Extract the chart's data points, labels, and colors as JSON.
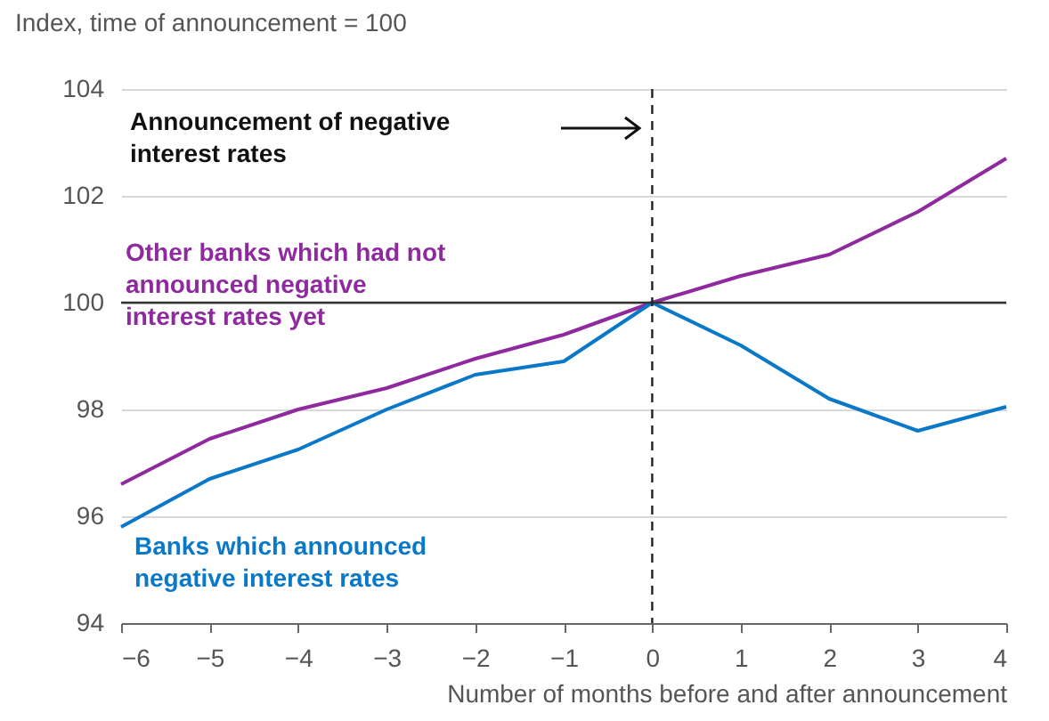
{
  "chart_data": {
    "type": "line",
    "ylabel": "Index, time of announcement = 100",
    "xlabel": "Number of months before and after announcement",
    "x": [
      -6,
      -5,
      -4,
      -3,
      -2,
      -1,
      0,
      1,
      2,
      3,
      4
    ],
    "series": [
      {
        "name": "Other banks which had not announced negative interest rates yet",
        "color": "#8e2a9e",
        "values": [
          96.6,
          97.45,
          98.0,
          98.4,
          98.95,
          99.4,
          100,
          100.5,
          100.9,
          101.7,
          102.7
        ]
      },
      {
        "name": "Banks which announced negative interest rates",
        "color": "#0a78c8",
        "values": [
          95.8,
          96.7,
          97.25,
          98.0,
          98.65,
          98.9,
          100,
          99.2,
          98.2,
          97.6,
          98.05
        ]
      }
    ],
    "xlim": [
      -6,
      4
    ],
    "xticks": [
      -6,
      -5,
      -4,
      -3,
      -2,
      -1,
      0,
      1,
      2,
      3,
      4
    ],
    "ylim": [
      94,
      104
    ],
    "yticks": [
      94,
      96,
      98,
      100,
      102,
      104
    ],
    "grid": "y",
    "ref_lines": [
      {
        "axis": "y",
        "value": 100,
        "color": "#333333",
        "line_style": "solid"
      },
      {
        "axis": "x",
        "value": 0,
        "color": "#222222",
        "line_style": "dashed"
      }
    ],
    "annotations": [
      "Announcement of negative interest rates"
    ]
  }
}
